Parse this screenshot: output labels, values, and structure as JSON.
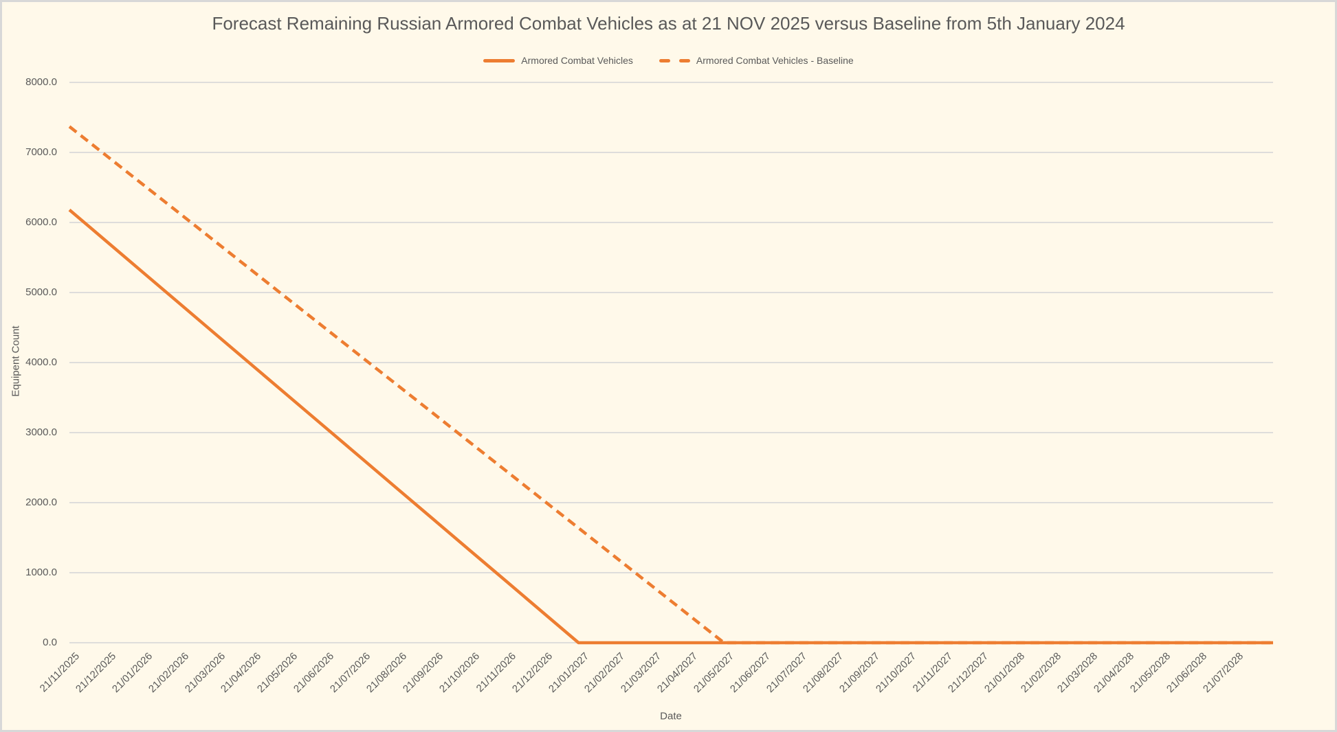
{
  "frame": {
    "background_color": "#FFF9EA",
    "border_color": "#D8D8D8"
  },
  "title": {
    "text": "Forecast Remaining Russian Armored Combat Vehicles as at 21 NOV 2025 versus Baseline from 5th January 2024",
    "color": "#595959"
  },
  "legend": {
    "position": "top-center",
    "items": [
      {
        "label": "Armored Combat Vehicles",
        "style": "solid",
        "color": "#ED7D31"
      },
      {
        "label": "Armored Combat Vehicles - Baseline",
        "style": "dashed",
        "color": "#ED7D31"
      }
    ]
  },
  "chart_data": {
    "type": "line",
    "title": "Forecast Remaining Russian Armored Combat Vehicles as at 21 NOV 2025 versus Baseline from 5th January 2024",
    "xlabel": "Date",
    "ylabel": "Equipent Count",
    "ylim": [
      0,
      8000
    ],
    "y_tick_values": [
      0,
      1000,
      2000,
      3000,
      4000,
      5000,
      6000,
      7000,
      8000
    ],
    "y_tick_labels": [
      "0.0",
      "1000.0",
      "2000.0",
      "3000.0",
      "4000.0",
      "5000.0",
      "6000.0",
      "7000.0",
      "8000.0"
    ],
    "grid": "horizontal",
    "gridline_color": "#D9D9D9",
    "categories": [
      "21/11/2025",
      "21/12/2025",
      "21/01/2026",
      "21/02/2026",
      "21/03/2026",
      "21/04/2026",
      "21/05/2026",
      "21/06/2026",
      "21/07/2026",
      "21/08/2026",
      "21/09/2026",
      "21/10/2026",
      "21/11/2026",
      "21/12/2026",
      "21/01/2027",
      "21/02/2027",
      "21/03/2027",
      "21/04/2027",
      "21/05/2027",
      "21/06/2027",
      "21/07/2027",
      "21/08/2027",
      "21/09/2027",
      "21/10/2027",
      "21/11/2027",
      "21/12/2027",
      "21/01/2028",
      "21/02/2028",
      "21/03/2028",
      "21/04/2028",
      "21/05/2028",
      "21/06/2028",
      "21/07/2028"
    ],
    "series": [
      {
        "name": "Armored Combat Vehicles - Baseline",
        "style": "dashed",
        "color": "#ED7D31",
        "values": [
          7370,
          6961,
          6551,
          6142,
          5732,
          5323,
          4913,
          4504,
          4094,
          3685,
          3276,
          2866,
          2457,
          2047,
          1638,
          1228,
          819,
          409,
          0,
          0,
          0,
          0,
          0,
          0,
          0,
          0,
          0,
          0,
          0,
          0,
          0,
          0,
          0
        ]
      },
      {
        "name": "Armored Combat Vehicles",
        "style": "solid",
        "color": "#ED7D31",
        "values": [
          6180,
          5739,
          5297,
          4856,
          4414,
          3973,
          3531,
          3090,
          2649,
          2207,
          1766,
          1324,
          883,
          441,
          0,
          0,
          0,
          0,
          0,
          0,
          0,
          0,
          0,
          0,
          0,
          0,
          0,
          0,
          0,
          0,
          0,
          0,
          0
        ]
      }
    ]
  }
}
